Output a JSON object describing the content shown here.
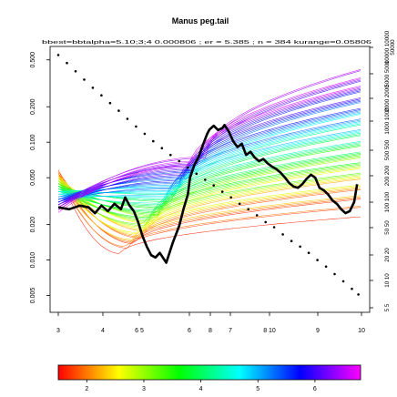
{
  "chart_data": {
    "type": "line",
    "title": "Manus peg.tail",
    "subtitle": "bbest=bbtalpha=5.10;3;4 0.000806 ; er = 5.385 ; n = 384 kurange=0.05806",
    "bottom_axis_ticks": [
      "3",
      "4",
      "6 5",
      "6",
      "8",
      "7",
      "8 10",
      "9",
      "10"
    ],
    "left_axis_ticks": [
      "0.005",
      "0.010",
      "0.020",
      "0.050",
      "0.100",
      "0.200",
      "0.500"
    ],
    "left_axis_tick_values": [
      0.005,
      0.01,
      0.02,
      0.05,
      0.1,
      0.2,
      0.5
    ],
    "ylim": [
      0.0036,
      0.65
    ],
    "y_scale": "log",
    "right_axis_ticks": [
      "5 5",
      "10 10",
      "20 20",
      "50 50",
      "100 100",
      "200 200",
      "500 500",
      "1000 1000",
      "2000 2000",
      "5000 5000",
      "10000 10000",
      "50000"
    ],
    "colorbar_ticks": [
      "2",
      "3",
      "4",
      "5",
      "6"
    ],
    "colorbar_range": [
      1.5,
      6.8
    ],
    "colors": {
      "colorbar": [
        "#ff0000",
        "#ff8000",
        "#ffff00",
        "#80ff00",
        "#00ff00",
        "#00ff80",
        "#00ffff",
        "#0080ff",
        "#0000ff",
        "#8000ff",
        "#ff00ff"
      ],
      "data_line": "#000000",
      "dots": "#000000",
      "frame": "#000000"
    },
    "xlim": [
      3,
      10
    ],
    "black_line": {
      "x": [
        3.0,
        3.25,
        3.5,
        3.7,
        3.85,
        4.0,
        4.15,
        4.3,
        4.45,
        4.55,
        4.65,
        4.75,
        4.85,
        4.95,
        5.05,
        5.15,
        5.25,
        5.35,
        5.5,
        5.65,
        5.8,
        5.9,
        6.0,
        6.05,
        6.15,
        6.25,
        6.35,
        6.45,
        6.5,
        6.6,
        6.7,
        6.8,
        6.85,
        6.95,
        7.05,
        7.15,
        7.25,
        7.35,
        7.45,
        7.55,
        7.65,
        7.75,
        7.85,
        7.95,
        8.05,
        8.15,
        8.25,
        8.35,
        8.45,
        8.55,
        8.65,
        8.75,
        8.85,
        8.95,
        9.05,
        9.15,
        9.25,
        9.35,
        9.45,
        9.55,
        9.65,
        9.75,
        9.85,
        9.92
      ],
      "y": [
        0.028,
        0.027,
        0.029,
        0.028,
        0.025,
        0.029,
        0.026,
        0.03,
        0.027,
        0.034,
        0.029,
        0.026,
        0.021,
        0.016,
        0.013,
        0.011,
        0.0105,
        0.0115,
        0.0095,
        0.014,
        0.0195,
        0.027,
        0.036,
        0.05,
        0.064,
        0.075,
        0.095,
        0.118,
        0.128,
        0.138,
        0.127,
        0.132,
        0.14,
        0.123,
        0.102,
        0.091,
        0.097,
        0.078,
        0.083,
        0.074,
        0.069,
        0.072,
        0.066,
        0.062,
        0.059,
        0.055,
        0.05,
        0.045,
        0.042,
        0.041,
        0.044,
        0.049,
        0.053,
        0.05,
        0.041,
        0.039,
        0.036,
        0.032,
        0.03,
        0.027,
        0.025,
        0.026,
        0.031,
        0.044
      ]
    },
    "dotted_line": {
      "x": [
        3.0,
        3.2,
        3.4,
        3.6,
        3.8,
        4.0,
        4.2,
        4.4,
        4.6,
        4.8,
        5.0,
        5.2,
        5.4,
        5.6,
        5.8,
        6.0,
        6.2,
        6.4,
        6.6,
        6.8,
        7.0,
        7.2,
        7.4,
        7.6,
        7.8,
        8.0,
        8.2,
        8.4,
        8.6,
        8.8,
        9.0,
        9.2,
        9.4,
        9.6,
        9.8,
        9.95
      ],
      "y": [
        0.55,
        0.47,
        0.4,
        0.34,
        0.29,
        0.25,
        0.215,
        0.185,
        0.158,
        0.136,
        0.118,
        0.102,
        0.089,
        0.078,
        0.069,
        0.061,
        0.054,
        0.048,
        0.043,
        0.038,
        0.034,
        0.03,
        0.027,
        0.024,
        0.021,
        0.019,
        0.0165,
        0.0145,
        0.013,
        0.0115,
        0.01,
        0.0088,
        0.0076,
        0.0066,
        0.0057,
        0.0051
      ]
    }
  }
}
